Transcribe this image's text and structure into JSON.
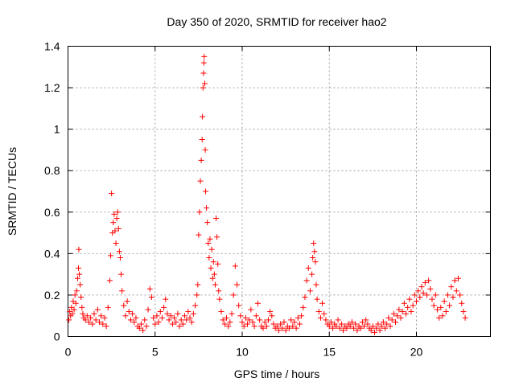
{
  "chart_data": {
    "type": "scatter",
    "title": "Day 350 of 2020, SRMTID for receiver hao2",
    "xlabel": "GPS time / hours",
    "ylabel": "SRMTID / TECUs",
    "xlim": [
      0,
      24.25
    ],
    "ylim": [
      0,
      1.4
    ],
    "xticks": [
      0,
      5,
      10,
      15,
      20
    ],
    "xtick_labels": [
      "0",
      "5",
      "10",
      "15",
      "20"
    ],
    "yticks": [
      0,
      0.2,
      0.4,
      0.6,
      0.8,
      1.0,
      1.2,
      1.4
    ],
    "ytick_labels": [
      "0",
      "0.2",
      "0.4",
      "0.6",
      "0.8",
      "1",
      "1.2",
      "1.4"
    ],
    "grid": true,
    "marker": "+",
    "color": "#ff0000",
    "series": [
      {
        "name": "SRMTID",
        "points": [
          [
            0.05,
            0.08
          ],
          [
            0.1,
            0.12
          ],
          [
            0.15,
            0.1
          ],
          [
            0.2,
            0.14
          ],
          [
            0.25,
            0.11
          ],
          [
            0.3,
            0.17
          ],
          [
            0.35,
            0.13
          ],
          [
            0.4,
            0.2
          ],
          [
            0.45,
            0.16
          ],
          [
            0.5,
            0.22
          ],
          [
            0.55,
            0.28
          ],
          [
            0.6,
            0.33
          ],
          [
            0.62,
            0.42
          ],
          [
            0.65,
            0.3
          ],
          [
            0.7,
            0.25
          ],
          [
            0.75,
            0.19
          ],
          [
            0.8,
            0.14
          ],
          [
            0.85,
            0.11
          ],
          [
            0.9,
            0.09
          ],
          [
            1.0,
            0.08
          ],
          [
            1.1,
            0.1
          ],
          [
            1.2,
            0.07
          ],
          [
            1.3,
            0.09
          ],
          [
            1.4,
            0.06
          ],
          [
            1.5,
            0.11
          ],
          [
            1.6,
            0.08
          ],
          [
            1.7,
            0.13
          ],
          [
            1.8,
            0.07
          ],
          [
            1.9,
            0.1
          ],
          [
            2.0,
            0.06
          ],
          [
            2.1,
            0.09
          ],
          [
            2.2,
            0.05
          ],
          [
            2.3,
            0.14
          ],
          [
            2.4,
            0.27
          ],
          [
            2.45,
            0.39
          ],
          [
            2.5,
            0.69
          ],
          [
            2.55,
            0.5
          ],
          [
            2.6,
            0.55
          ],
          [
            2.65,
            0.59
          ],
          [
            2.7,
            0.51
          ],
          [
            2.75,
            0.45
          ],
          [
            2.8,
            0.57
          ],
          [
            2.85,
            0.6
          ],
          [
            2.9,
            0.52
          ],
          [
            2.95,
            0.41
          ],
          [
            3.0,
            0.38
          ],
          [
            3.05,
            0.3
          ],
          [
            3.1,
            0.22
          ],
          [
            3.2,
            0.15
          ],
          [
            3.3,
            0.1
          ],
          [
            3.4,
            0.17
          ],
          [
            3.5,
            0.12
          ],
          [
            3.6,
            0.08
          ],
          [
            3.7,
            0.11
          ],
          [
            3.8,
            0.07
          ],
          [
            3.9,
            0.09
          ],
          [
            4.0,
            0.05
          ],
          [
            4.1,
            0.04
          ],
          [
            4.2,
            0.06
          ],
          [
            4.3,
            0.03
          ],
          [
            4.4,
            0.08
          ],
          [
            4.5,
            0.05
          ],
          [
            4.6,
            0.13
          ],
          [
            4.7,
            0.23
          ],
          [
            4.8,
            0.19
          ],
          [
            4.9,
            0.09
          ],
          [
            5.0,
            0.06
          ],
          [
            5.1,
            0.1
          ],
          [
            5.2,
            0.07
          ],
          [
            5.3,
            0.12
          ],
          [
            5.4,
            0.09
          ],
          [
            5.5,
            0.14
          ],
          [
            5.6,
            0.18
          ],
          [
            5.7,
            0.11
          ],
          [
            5.8,
            0.08
          ],
          [
            5.9,
            0.1
          ],
          [
            6.0,
            0.06
          ],
          [
            6.1,
            0.09
          ],
          [
            6.2,
            0.07
          ],
          [
            6.3,
            0.11
          ],
          [
            6.4,
            0.05
          ],
          [
            6.5,
            0.08
          ],
          [
            6.6,
            0.06
          ],
          [
            6.7,
            0.1
          ],
          [
            6.8,
            0.08
          ],
          [
            6.9,
            0.12
          ],
          [
            7.0,
            0.09
          ],
          [
            7.1,
            0.07
          ],
          [
            7.2,
            0.11
          ],
          [
            7.3,
            0.15
          ],
          [
            7.4,
            0.2
          ],
          [
            7.45,
            0.25
          ],
          [
            7.5,
            0.49
          ],
          [
            7.55,
            0.6
          ],
          [
            7.6,
            0.75
          ],
          [
            7.65,
            0.85
          ],
          [
            7.7,
            0.95
          ],
          [
            7.72,
            1.06
          ],
          [
            7.75,
            1.2
          ],
          [
            7.78,
            1.27
          ],
          [
            7.8,
            1.32
          ],
          [
            7.82,
            1.35
          ],
          [
            7.85,
            1.22
          ],
          [
            7.88,
            0.9
          ],
          [
            7.9,
            0.7
          ],
          [
            7.95,
            0.62
          ],
          [
            8.0,
            0.55
          ],
          [
            8.05,
            0.45
          ],
          [
            8.1,
            0.38
          ],
          [
            8.15,
            0.47
          ],
          [
            8.2,
            0.33
          ],
          [
            8.25,
            0.42
          ],
          [
            8.3,
            0.28
          ],
          [
            8.35,
            0.36
          ],
          [
            8.4,
            0.3
          ],
          [
            8.45,
            0.25
          ],
          [
            8.5,
            0.57
          ],
          [
            8.55,
            0.48
          ],
          [
            8.6,
            0.35
          ],
          [
            8.65,
            0.22
          ],
          [
            8.7,
            0.18
          ],
          [
            8.8,
            0.12
          ],
          [
            8.9,
            0.08
          ],
          [
            9.0,
            0.06
          ],
          [
            9.1,
            0.09
          ],
          [
            9.2,
            0.05
          ],
          [
            9.3,
            0.07
          ],
          [
            9.4,
            0.11
          ],
          [
            9.5,
            0.2
          ],
          [
            9.6,
            0.34
          ],
          [
            9.7,
            0.25
          ],
          [
            9.8,
            0.15
          ],
          [
            9.9,
            0.1
          ],
          [
            10.0,
            0.07
          ],
          [
            10.1,
            0.05
          ],
          [
            10.2,
            0.09
          ],
          [
            10.3,
            0.06
          ],
          [
            10.4,
            0.08
          ],
          [
            10.5,
            0.13
          ],
          [
            10.6,
            0.07
          ],
          [
            10.7,
            0.05
          ],
          [
            10.8,
            0.1
          ],
          [
            10.9,
            0.16
          ],
          [
            11.0,
            0.08
          ],
          [
            11.1,
            0.05
          ],
          [
            11.2,
            0.04
          ],
          [
            11.3,
            0.07
          ],
          [
            11.4,
            0.05
          ],
          [
            11.5,
            0.08
          ],
          [
            11.6,
            0.12
          ],
          [
            11.7,
            0.1
          ],
          [
            11.8,
            0.06
          ],
          [
            11.9,
            0.04
          ],
          [
            12.0,
            0.05
          ],
          [
            12.1,
            0.03
          ],
          [
            12.2,
            0.06
          ],
          [
            12.3,
            0.04
          ],
          [
            12.4,
            0.07
          ],
          [
            12.5,
            0.03
          ],
          [
            12.6,
            0.05
          ],
          [
            12.7,
            0.04
          ],
          [
            12.8,
            0.08
          ],
          [
            12.9,
            0.05
          ],
          [
            13.0,
            0.07
          ],
          [
            13.1,
            0.04
          ],
          [
            13.2,
            0.09
          ],
          [
            13.3,
            0.06
          ],
          [
            13.4,
            0.1
          ],
          [
            13.5,
            0.14
          ],
          [
            13.6,
            0.19
          ],
          [
            13.7,
            0.27
          ],
          [
            13.8,
            0.33
          ],
          [
            13.9,
            0.22
          ],
          [
            14.0,
            0.3
          ],
          [
            14.05,
            0.38
          ],
          [
            14.1,
            0.45
          ],
          [
            14.15,
            0.41
          ],
          [
            14.2,
            0.36
          ],
          [
            14.25,
            0.25
          ],
          [
            14.3,
            0.18
          ],
          [
            14.4,
            0.12
          ],
          [
            14.5,
            0.09
          ],
          [
            14.6,
            0.16
          ],
          [
            14.7,
            0.11
          ],
          [
            14.8,
            0.08
          ],
          [
            14.9,
            0.06
          ],
          [
            15.0,
            0.05
          ],
          [
            15.1,
            0.07
          ],
          [
            15.2,
            0.04
          ],
          [
            15.3,
            0.06
          ],
          [
            15.4,
            0.05
          ],
          [
            15.5,
            0.08
          ],
          [
            15.6,
            0.04
          ],
          [
            15.7,
            0.06
          ],
          [
            15.8,
            0.03
          ],
          [
            15.9,
            0.05
          ],
          [
            16.0,
            0.04
          ],
          [
            16.1,
            0.06
          ],
          [
            16.2,
            0.05
          ],
          [
            16.3,
            0.07
          ],
          [
            16.4,
            0.04
          ],
          [
            16.5,
            0.06
          ],
          [
            16.6,
            0.03
          ],
          [
            16.7,
            0.05
          ],
          [
            16.8,
            0.04
          ],
          [
            16.9,
            0.07
          ],
          [
            17.0,
            0.05
          ],
          [
            17.1,
            0.08
          ],
          [
            17.2,
            0.06
          ],
          [
            17.3,
            0.04
          ],
          [
            17.4,
            0.03
          ],
          [
            17.5,
            0.05
          ],
          [
            17.6,
            0.02
          ],
          [
            17.7,
            0.04
          ],
          [
            17.8,
            0.06
          ],
          [
            17.9,
            0.03
          ],
          [
            18.0,
            0.05
          ],
          [
            18.1,
            0.07
          ],
          [
            18.2,
            0.04
          ],
          [
            18.3,
            0.06
          ],
          [
            18.4,
            0.09
          ],
          [
            18.5,
            0.05
          ],
          [
            18.6,
            0.08
          ],
          [
            18.7,
            0.11
          ],
          [
            18.8,
            0.07
          ],
          [
            18.9,
            0.1
          ],
          [
            19.0,
            0.13
          ],
          [
            19.1,
            0.09
          ],
          [
            19.2,
            0.12
          ],
          [
            19.3,
            0.16
          ],
          [
            19.4,
            0.11
          ],
          [
            19.5,
            0.14
          ],
          [
            19.6,
            0.18
          ],
          [
            19.7,
            0.12
          ],
          [
            19.8,
            0.15
          ],
          [
            19.9,
            0.2
          ],
          [
            20.0,
            0.17
          ],
          [
            20.1,
            0.22
          ],
          [
            20.2,
            0.19
          ],
          [
            20.3,
            0.24
          ],
          [
            20.4,
            0.21
          ],
          [
            20.5,
            0.26
          ],
          [
            20.6,
            0.2
          ],
          [
            20.7,
            0.27
          ],
          [
            20.8,
            0.23
          ],
          [
            20.9,
            0.18
          ],
          [
            21.0,
            0.15
          ],
          [
            21.1,
            0.2
          ],
          [
            21.2,
            0.13
          ],
          [
            21.3,
            0.09
          ],
          [
            21.4,
            0.14
          ],
          [
            21.5,
            0.1
          ],
          [
            21.6,
            0.17
          ],
          [
            21.7,
            0.12
          ],
          [
            21.8,
            0.2
          ],
          [
            21.9,
            0.15
          ],
          [
            22.0,
            0.24
          ],
          [
            22.1,
            0.19
          ],
          [
            22.2,
            0.27
          ],
          [
            22.3,
            0.22
          ],
          [
            22.4,
            0.28
          ],
          [
            22.5,
            0.2
          ],
          [
            22.6,
            0.16
          ],
          [
            22.7,
            0.12
          ],
          [
            22.8,
            0.09
          ]
        ]
      }
    ]
  }
}
